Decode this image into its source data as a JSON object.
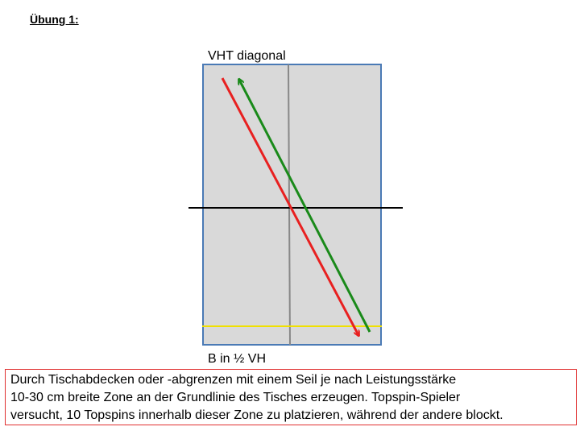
{
  "header": {
    "title": "Übung 1:"
  },
  "diagram": {
    "top_label": "VHT diagonal",
    "bottom_label": "B in ½ VH"
  },
  "description": {
    "lines": [
      "Durch Tischabdecken oder -abgrenzen mit einem Seil je nach Leistungsstärke",
      "10-30 cm breite Zone an der Grundlinie des Tisches erzeugen. Topspin-Spieler",
      "versucht, 10 Topspins innerhalb dieser Zone zu platzieren, während der andere blockt."
    ]
  }
}
